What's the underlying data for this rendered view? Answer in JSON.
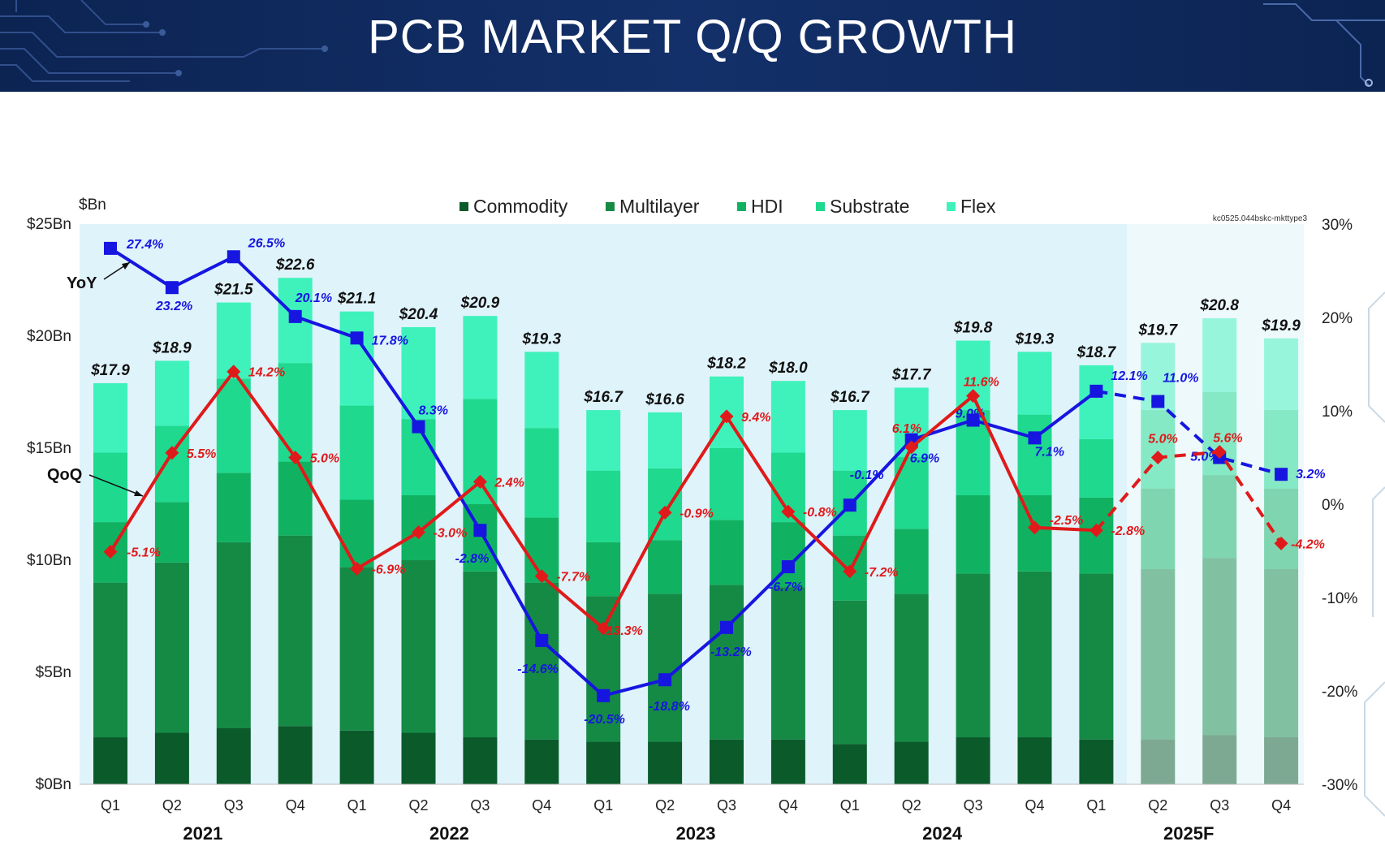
{
  "page": {
    "title": "PCB MARKET Q/Q GROWTH",
    "footnote": "kc0525.044bskc-mkttype3"
  },
  "colors": {
    "commodity": "#0b5a2a",
    "multilayer": "#148a45",
    "hdi": "#10b262",
    "substrate": "#1ed98e",
    "flex": "#3ff2bb",
    "yoy": "#1616e0",
    "qoq": "#e01a1a",
    "plot_bg": "#dff3fb",
    "forecast_bg": "#eef9fc",
    "header_bg": "#0f2a5e"
  },
  "chart_data": {
    "type": "bar",
    "stacked": true,
    "title": "PCB MARKET Q/Q GROWTH",
    "ylabel_left": "$Bn",
    "ylim_left": [
      0,
      25
    ],
    "yticks_left": [
      "$0Bn",
      "$5Bn",
      "$10Bn",
      "$15Bn",
      "$20Bn",
      "$25Bn"
    ],
    "ylim_right": [
      -30,
      30
    ],
    "yticks_right": [
      "-30%",
      "-20%",
      "-10%",
      "0%",
      "10%",
      "20%",
      "30%"
    ],
    "categories": [
      "Q1",
      "Q2",
      "Q3",
      "Q4",
      "Q1",
      "Q2",
      "Q3",
      "Q4",
      "Q1",
      "Q2",
      "Q3",
      "Q4",
      "Q1",
      "Q2",
      "Q3",
      "Q4",
      "Q1",
      "Q2",
      "Q3",
      "Q4"
    ],
    "years": [
      {
        "label": "2021",
        "start": 0,
        "end": 3
      },
      {
        "label": "2022",
        "start": 4,
        "end": 7
      },
      {
        "label": "2023",
        "start": 8,
        "end": 11
      },
      {
        "label": "2024",
        "start": 12,
        "end": 15
      },
      {
        "label": "2025F",
        "start": 16,
        "end": 19
      }
    ],
    "forecast_start_index": 17,
    "legend_position": "top-center",
    "series": [
      {
        "name": "Commodity",
        "values": [
          2.1,
          2.3,
          2.5,
          2.6,
          2.4,
          2.3,
          2.1,
          2.0,
          1.9,
          1.9,
          2.0,
          2.0,
          1.8,
          1.9,
          2.1,
          2.1,
          2.0,
          2.0,
          2.2,
          2.1
        ]
      },
      {
        "name": "Multilayer",
        "values": [
          6.9,
          7.6,
          8.3,
          8.5,
          7.3,
          7.7,
          7.4,
          7.0,
          6.5,
          6.6,
          6.9,
          6.8,
          6.4,
          6.6,
          7.3,
          7.4,
          7.4,
          7.6,
          7.9,
          7.5
        ]
      },
      {
        "name": "HDI",
        "values": [
          2.7,
          2.7,
          3.1,
          3.3,
          3.0,
          2.9,
          3.0,
          2.9,
          2.4,
          2.4,
          2.9,
          2.9,
          2.9,
          2.9,
          3.5,
          3.4,
          3.4,
          3.6,
          3.7,
          3.6
        ]
      },
      {
        "name": "Substrate",
        "values": [
          3.1,
          3.4,
          4.2,
          4.4,
          4.2,
          3.4,
          4.7,
          4.0,
          3.2,
          3.2,
          3.2,
          3.1,
          2.9,
          3.2,
          3.8,
          3.6,
          2.6,
          3.5,
          3.7,
          3.5
        ]
      },
      {
        "name": "Flex",
        "values": [
          3.1,
          2.9,
          3.4,
          3.8,
          4.2,
          4.1,
          3.7,
          3.4,
          2.7,
          2.5,
          3.2,
          3.2,
          2.7,
          3.1,
          3.1,
          2.8,
          3.3,
          3.0,
          3.3,
          3.2
        ]
      }
    ],
    "totals": [
      17.9,
      18.9,
      21.5,
      22.6,
      21.1,
      20.4,
      20.9,
      19.3,
      16.7,
      16.6,
      18.2,
      18.0,
      16.7,
      17.7,
      19.8,
      19.3,
      18.7,
      19.7,
      20.8,
      19.9
    ],
    "total_labels": [
      "$17.9",
      "$18.9",
      "$21.5",
      "$22.6",
      "$21.1",
      "$20.4",
      "$20.9",
      "$19.3",
      "$16.7",
      "$16.6",
      "$18.2",
      "$18.0",
      "$16.7",
      "$17.7",
      "$19.8",
      "$19.3",
      "$18.7",
      "$19.7",
      "$20.8",
      "$19.9"
    ],
    "yoy": {
      "name": "YoY",
      "values": [
        27.4,
        23.2,
        26.5,
        20.1,
        17.8,
        8.3,
        -2.8,
        -14.6,
        -20.5,
        -18.8,
        -13.2,
        -6.7,
        -0.1,
        6.9,
        9.0,
        7.1,
        12.1,
        11.0,
        5.0,
        3.2
      ],
      "labels": [
        "27.4%",
        "23.2%",
        "26.5%",
        "20.1%",
        "17.8%",
        "8.3%",
        "-2.8%",
        "-14.6%",
        "-20.5%",
        "-18.8%",
        "-13.2%",
        "-6.7%",
        "-0.1%",
        "6.9%",
        "9.0%",
        "7.1%",
        "12.1%",
        "11.0%",
        "5.0%",
        "3.2%"
      ]
    },
    "qoq": {
      "name": "QoQ",
      "values": [
        -5.1,
        5.5,
        14.2,
        5.0,
        -6.9,
        -3.0,
        2.4,
        -7.7,
        -13.3,
        -0.9,
        9.4,
        -0.8,
        -7.2,
        6.1,
        11.6,
        -2.5,
        -2.8,
        5.0,
        5.6,
        -4.2
      ],
      "labels": [
        "-5.1%",
        "5.5%",
        "14.2%",
        "5.0%",
        "-6.9%",
        "-3.0%",
        "2.4%",
        "-7.7%",
        "-13.3%",
        "-0.9%",
        "9.4%",
        "-0.8%",
        "-7.2%",
        "6.1%",
        "11.6%",
        "-2.5%",
        "-2.8%",
        "5.0%",
        "5.6%",
        "-4.2%"
      ]
    },
    "annotations": [
      "YoY",
      "QoQ"
    ]
  }
}
